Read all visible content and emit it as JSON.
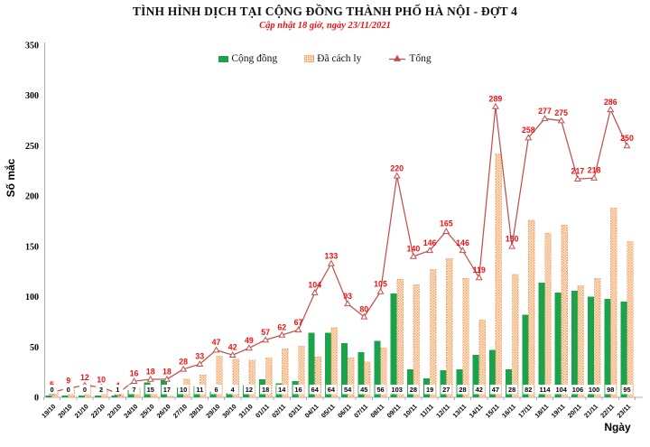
{
  "header": {
    "title": "TÌNH HÌNH DỊCH TẠI CỘNG ĐỒNG THÀNH PHỐ HÀ NỘI - ĐỢT 4",
    "subtitle": "Cập nhật 18 giờ, ngày 23/11/2021"
  },
  "legend": {
    "items": [
      {
        "label": "Cộng đồng",
        "swatch": "green-bar-swatch"
      },
      {
        "label": "Đã cách ly",
        "swatch": "dotted-orange-bar-swatch"
      },
      {
        "label": "Tổng",
        "swatch": "red-line-triangle-swatch"
      }
    ]
  },
  "y_axis": {
    "label": "Số mắc",
    "ticks": [
      0,
      50,
      100,
      150,
      200,
      250,
      300,
      350
    ],
    "max": 350
  },
  "x_axis": {
    "label": "Ngày"
  },
  "colors": {
    "community_green": "#1BA34B",
    "quarantine_fill": "#FCE3C9",
    "quarantine_dot": "#F1A268",
    "quarantine_border": "#EE9D5F",
    "total_line": "#C0504D",
    "red_text": "#F01010",
    "axis_gray": "#ABABAB"
  },
  "chart_data": {
    "type": "bar+line combo",
    "title": "TÌNH HÌNH DỊCH TẠI CỘNG ĐỒNG THÀNH PHỐ HÀ NỘI - ĐỢT 4",
    "subtitle": "Cập nhật 18 giờ, ngày 23/11/2021",
    "xlabel": "Ngày",
    "ylabel": "Số mắc",
    "ylim": [
      0,
      350
    ],
    "grid": false,
    "legend_position": "top",
    "categories": [
      "19/10",
      "20/10",
      "21/10",
      "22/10",
      "23/10",
      "24/10",
      "25/10",
      "26/10",
      "27/10",
      "28/10",
      "29/10",
      "30/10",
      "31/10",
      "01/11",
      "02/11",
      "03/11",
      "04/11",
      "05/11",
      "06/11",
      "07/11",
      "08/11",
      "09/11",
      "10/11",
      "11/11",
      "12/11",
      "13/11",
      "14/11",
      "15/11",
      "16/11",
      "17/11",
      "18/11",
      "19/11",
      "20/11",
      "21/11",
      "22/11",
      "23/11"
    ],
    "series": [
      {
        "name": "Cộng đồng",
        "type": "bar",
        "color": "#1BA34B",
        "data_labels": "black, at base of bars",
        "values": [
          0,
          0,
          0,
          2,
          1,
          7,
          15,
          17,
          10,
          11,
          6,
          4,
          12,
          18,
          14,
          16,
          64,
          64,
          54,
          45,
          56,
          103,
          28,
          19,
          27,
          28,
          42,
          47,
          28,
          82,
          114,
          104,
          106,
          100,
          98,
          95
        ]
      },
      {
        "name": "Đã cách ly",
        "type": "bar",
        "color": "#F1A268",
        "pattern": "dotted",
        "data_labels": "none (heights read from chart = Tổng − Cộng đồng)",
        "values": [
          5,
          9,
          12,
          8,
          3,
          9,
          3,
          1,
          18,
          22,
          41,
          38,
          37,
          39,
          48,
          51,
          40,
          69,
          39,
          35,
          49,
          117,
          112,
          127,
          138,
          118,
          77,
          242,
          122,
          176,
          163,
          171,
          111,
          118,
          188,
          155
        ]
      },
      {
        "name": "Tổng",
        "type": "line",
        "color": "#C0504D",
        "marker": "open-triangle",
        "data_labels": "red, above markers",
        "values": [
          5,
          9,
          12,
          10,
          4,
          16,
          18,
          18,
          28,
          33,
          47,
          42,
          49,
          57,
          62,
          67,
          104,
          133,
          93,
          80,
          105,
          220,
          140,
          146,
          165,
          146,
          119,
          289,
          150,
          258,
          277,
          275,
          217,
          218,
          286,
          250
        ]
      }
    ]
  }
}
